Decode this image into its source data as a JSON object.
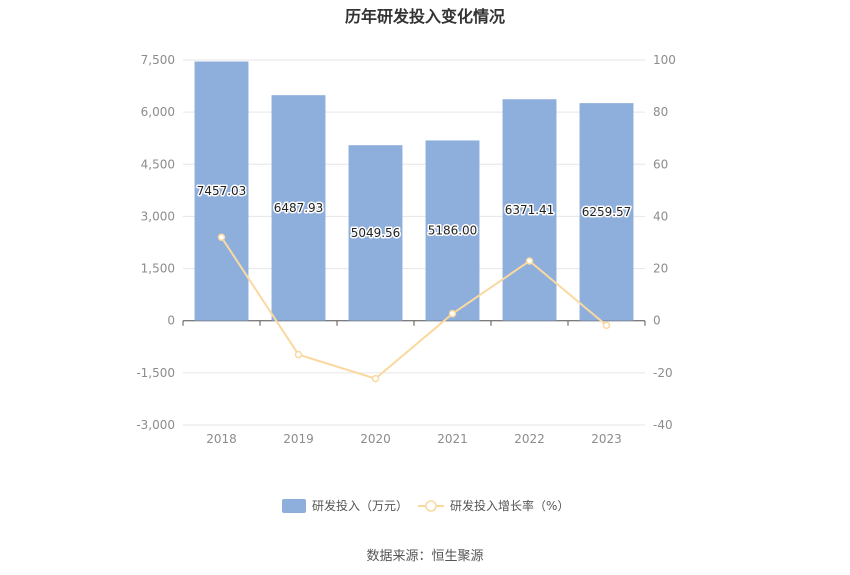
{
  "chart_data": {
    "type": "bar",
    "title": "历年研发投入变化情况",
    "categories": [
      "2018",
      "2019",
      "2020",
      "2021",
      "2022",
      "2023"
    ],
    "series": [
      {
        "name": "研发投入（万元）",
        "type": "bar",
        "axis": "left",
        "values": [
          7457.03,
          6487.93,
          5049.56,
          5186.0,
          6371.41,
          6259.57
        ],
        "labels": [
          "7457.03",
          "6487.93",
          "5049.56",
          "5186.00",
          "6371.41",
          "6259.57"
        ],
        "color": "#8eaedb"
      },
      {
        "name": "研发投入增长率（%）",
        "type": "line",
        "axis": "right",
        "values": [
          32,
          -13,
          -22.2,
          2.7,
          22.9,
          -1.8
        ],
        "color": "#fad9a1"
      }
    ],
    "y_left": {
      "min": -3000,
      "max": 7500,
      "ticks": [
        -3000,
        -1500,
        0,
        1500,
        3000,
        4500,
        6000,
        7500
      ],
      "tick_labels": [
        "-3,000",
        "-1,500",
        "0",
        "1,500",
        "3,000",
        "4,500",
        "6,000",
        "7,500"
      ]
    },
    "y_right": {
      "min": -40,
      "max": 100,
      "ticks": [
        -40,
        -20,
        0,
        20,
        40,
        60,
        80,
        100
      ],
      "tick_labels": [
        "-40",
        "-20",
        "0",
        "20",
        "40",
        "60",
        "80",
        "100"
      ]
    },
    "grid": true,
    "legend": "bottom-center",
    "source": "数据来源：恒生聚源"
  }
}
